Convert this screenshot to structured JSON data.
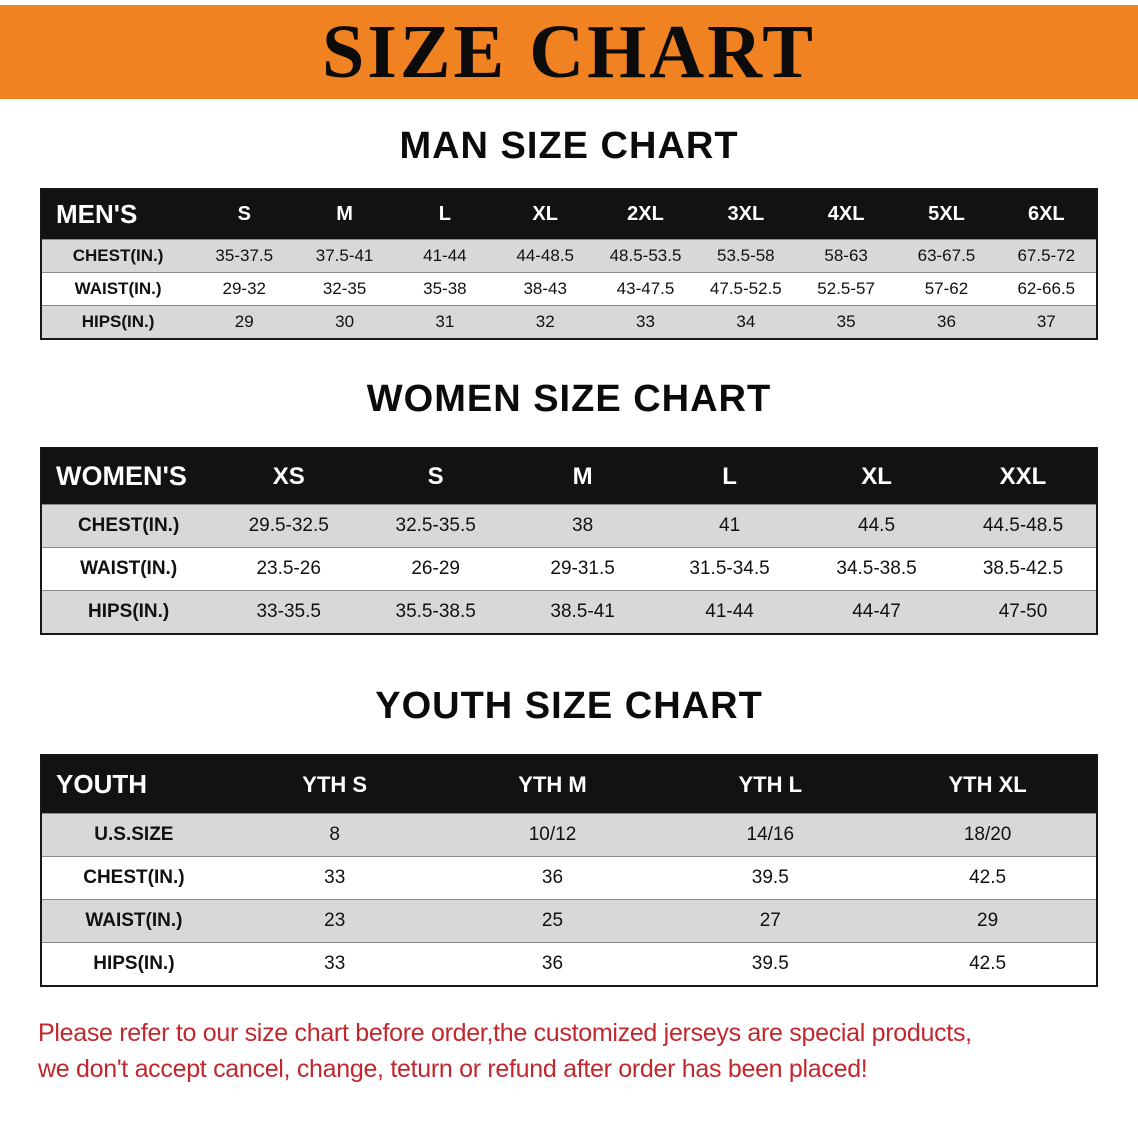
{
  "banner": {
    "title": "SIZE CHART"
  },
  "sections": [
    {
      "heading": "MAN SIZE CHART",
      "table": {
        "header": [
          "MEN'S",
          "S",
          "M",
          "L",
          "XL",
          "2XL",
          "3XL",
          "4XL",
          "5XL",
          "6XL"
        ],
        "rows": [
          {
            "label": "CHEST(IN.)",
            "values": [
              "35-37.5",
              "37.5-41",
              "41-44",
              "44-48.5",
              "48.5-53.5",
              "53.5-58",
              "58-63",
              "63-67.5",
              "67.5-72"
            ]
          },
          {
            "label": "WAIST(IN.)",
            "values": [
              "29-32",
              "32-35",
              "35-38",
              "38-43",
              "43-47.5",
              "47.5-52.5",
              "52.5-57",
              "57-62",
              "62-66.5"
            ]
          },
          {
            "label": "HIPS(IN.)",
            "values": [
              "29",
              "30",
              "31",
              "32",
              "33",
              "34",
              "35",
              "36",
              "37"
            ]
          }
        ]
      }
    },
    {
      "heading": "WOMEN SIZE CHART",
      "table": {
        "header": [
          "WOMEN'S",
          "XS",
          "S",
          "M",
          "L",
          "XL",
          "XXL"
        ],
        "rows": [
          {
            "label": "CHEST(IN.)",
            "values": [
              "29.5-32.5",
              "32.5-35.5",
              "38",
              "41",
              "44.5",
              "44.5-48.5"
            ]
          },
          {
            "label": "WAIST(IN.)",
            "values": [
              "23.5-26",
              "26-29",
              "29-31.5",
              "31.5-34.5",
              "34.5-38.5",
              "38.5-42.5"
            ]
          },
          {
            "label": "HIPS(IN.)",
            "values": [
              "33-35.5",
              "35.5-38.5",
              "38.5-41",
              "41-44",
              "44-47",
              "47-50"
            ]
          }
        ]
      }
    },
    {
      "heading": "YOUTH SIZE CHART",
      "table": {
        "header": [
          "YOUTH",
          "YTH S",
          "YTH M",
          "YTH L",
          "YTH XL"
        ],
        "rows": [
          {
            "label": "U.S.SIZE",
            "values": [
              "8",
              "10/12",
              "14/16",
              "18/20"
            ]
          },
          {
            "label": "CHEST(IN.)",
            "values": [
              "33",
              "36",
              "39.5",
              "42.5"
            ]
          },
          {
            "label": "WAIST(IN.)",
            "values": [
              "23",
              "25",
              "27",
              "29"
            ]
          },
          {
            "label": "HIPS(IN.)",
            "values": [
              "33",
              "36",
              "39.5",
              "42.5"
            ]
          }
        ]
      }
    }
  ],
  "footnote": {
    "line1": "Please refer to our size chart before order,the customized jerseys are special products,",
    "line2": "we don't accept cancel, change, teturn or refund after order has been placed!"
  },
  "colors": {
    "banner_bg": "#f08222",
    "table_header_bg": "#121212",
    "stripe": "#d8d8d8",
    "note_red": "#c1272d"
  }
}
